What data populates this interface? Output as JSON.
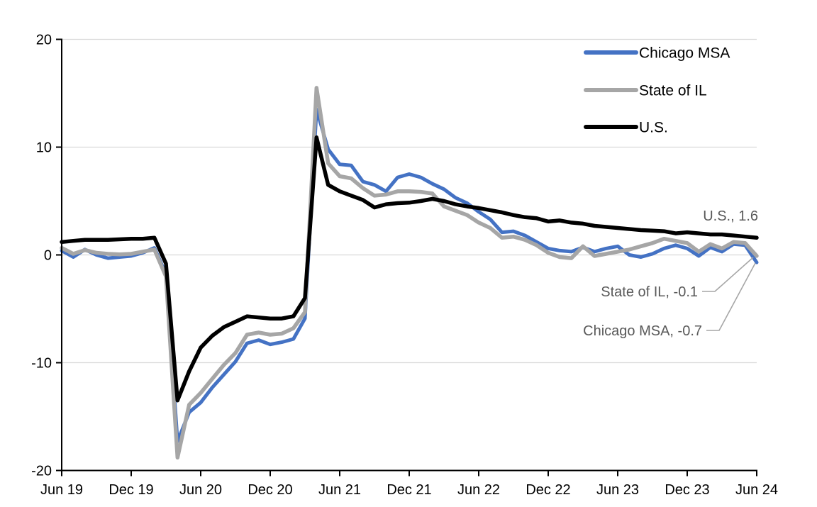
{
  "chart_data": {
    "type": "line",
    "x_unit": "month",
    "x_start_label": "Jun 19",
    "x_end_label": "Jun 24",
    "points_per_series": 61,
    "x_tick_labels": [
      "Jun 19",
      "Dec 19",
      "Jun 20",
      "Dec 20",
      "Jun 21",
      "Dec 21",
      "Jun 22",
      "Dec 22",
      "Jun 23",
      "Dec 23",
      "Jun 24"
    ],
    "y_tick_labels": [
      "20",
      "10",
      "0",
      "-10",
      "-20"
    ],
    "y_tick_values": [
      20,
      10,
      0,
      -10,
      -20
    ],
    "ylim": [
      -20,
      20
    ],
    "grid": "horizontal-light",
    "legend_position": "top-right-inside",
    "series": [
      {
        "name": "Chicago MSA",
        "color": "#4472C4",
        "values": [
          0.4,
          -0.2,
          0.5,
          0.0,
          -0.3,
          -0.2,
          -0.1,
          0.2,
          0.65,
          -1.8,
          -17.3,
          -14.6,
          -13.7,
          -12.3,
          -11.1,
          -9.9,
          -8.2,
          -7.9,
          -8.3,
          -8.1,
          -7.8,
          -5.9,
          13.5,
          9.8,
          8.4,
          8.3,
          6.8,
          6.5,
          5.9,
          7.2,
          7.5,
          7.2,
          6.6,
          6.1,
          5.3,
          4.8,
          4.0,
          3.3,
          2.1,
          2.2,
          1.8,
          1.2,
          0.6,
          0.4,
          0.3,
          0.7,
          0.3,
          0.6,
          0.8,
          0.0,
          -0.2,
          0.1,
          0.6,
          0.9,
          0.6,
          -0.1,
          0.7,
          0.3,
          1.0,
          0.9,
          -0.7
        ]
      },
      {
        "name": "State of IL",
        "color": "#A6A6A6",
        "values": [
          0.65,
          0.1,
          0.45,
          0.2,
          0.1,
          0.05,
          0.1,
          0.3,
          0.5,
          -2.0,
          -18.8,
          -13.9,
          -12.8,
          -11.5,
          -10.2,
          -9.1,
          -7.4,
          -7.2,
          -7.4,
          -7.3,
          -6.8,
          -5.3,
          15.5,
          8.5,
          7.3,
          7.1,
          6.2,
          5.5,
          5.6,
          5.9,
          5.9,
          5.85,
          5.7,
          4.5,
          4.1,
          3.7,
          3.0,
          2.5,
          1.6,
          1.7,
          1.4,
          0.9,
          0.2,
          -0.2,
          -0.3,
          0.8,
          -0.1,
          0.1,
          0.3,
          0.5,
          0.8,
          1.1,
          1.5,
          1.3,
          1.1,
          0.3,
          1.0,
          0.6,
          1.2,
          1.1,
          -0.1
        ]
      },
      {
        "name": "U.S.",
        "color": "#000000",
        "values": [
          1.2,
          1.3,
          1.4,
          1.4,
          1.4,
          1.45,
          1.5,
          1.5,
          1.6,
          -0.8,
          -13.5,
          -10.8,
          -8.6,
          -7.5,
          -6.7,
          -6.2,
          -5.7,
          -5.8,
          -5.9,
          -5.9,
          -5.7,
          -4.0,
          10.9,
          6.5,
          5.9,
          5.5,
          5.1,
          4.4,
          4.7,
          4.8,
          4.85,
          5.0,
          5.2,
          5.0,
          4.7,
          4.5,
          4.35,
          4.15,
          3.95,
          3.7,
          3.5,
          3.4,
          3.1,
          3.2,
          3.0,
          2.9,
          2.7,
          2.6,
          2.5,
          2.4,
          2.3,
          2.25,
          2.2,
          2.0,
          2.1,
          2.0,
          1.9,
          1.9,
          1.8,
          1.7,
          1.6
        ]
      }
    ],
    "end_values": {
      "chicago_msa": -0.7,
      "state_of_il": -0.1,
      "us": 1.6
    },
    "annotations": [
      {
        "text": "U.S., 1.6",
        "series": "U.S."
      },
      {
        "text": "State of IL, -0.1",
        "series": "State of IL"
      },
      {
        "text": "Chicago MSA, -0.7",
        "series": "Chicago MSA"
      }
    ]
  },
  "legend": {
    "items": [
      {
        "label": "Chicago MSA",
        "color": "#4472C4"
      },
      {
        "label": "State of IL",
        "color": "#A6A6A6"
      },
      {
        "label": "U.S.",
        "color": "#000000"
      }
    ]
  },
  "colors": {
    "background": "#FFFFFF",
    "gridline": "#D9D9D9",
    "axis": "#000000",
    "tick_label": "#000000",
    "annotation_text": "#595959",
    "leader_line": "#A6A6A6"
  }
}
